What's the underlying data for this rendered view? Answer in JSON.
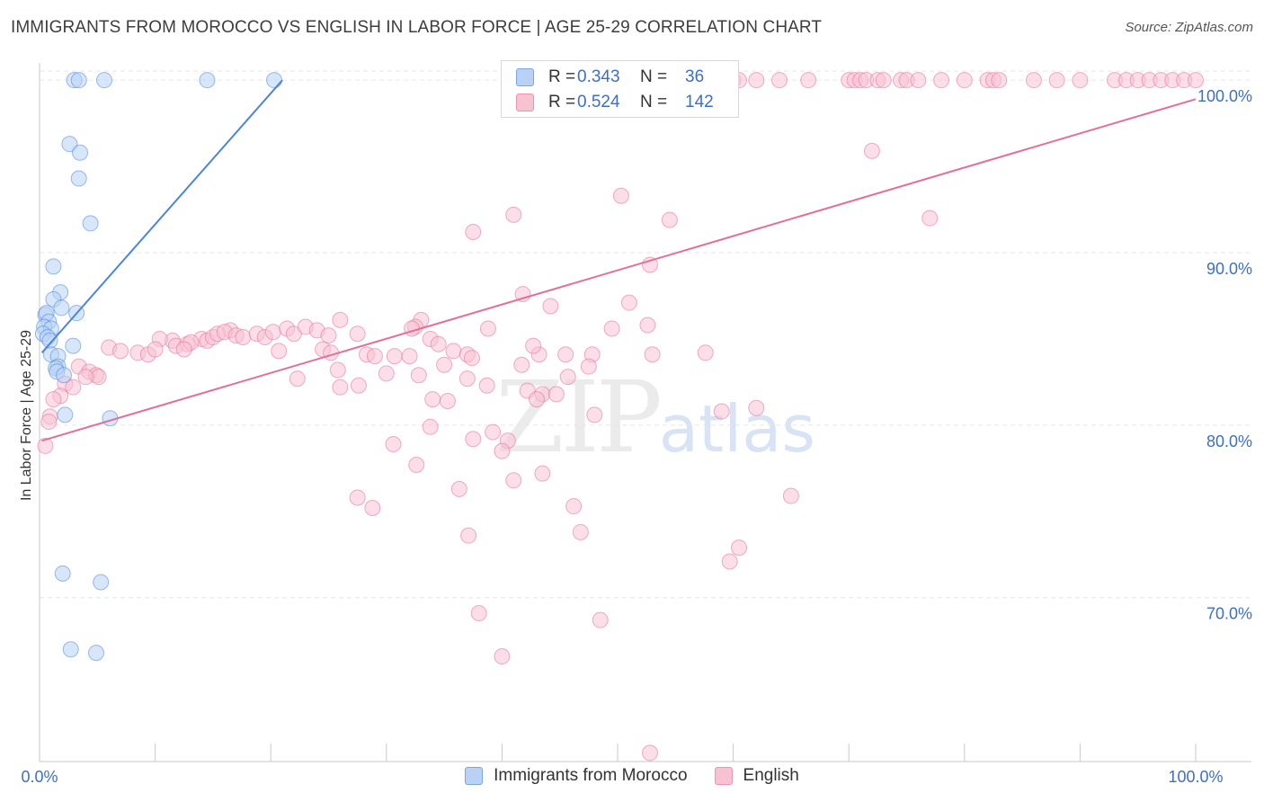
{
  "title": "IMMIGRANTS FROM MOROCCO VS ENGLISH IN LABOR FORCE | AGE 25-29 CORRELATION CHART",
  "source": "Source: ZipAtlas.com",
  "watermark": {
    "zip": "ZIP",
    "atlas": "atlas"
  },
  "legend": {
    "r_label": "R =",
    "n_label": "N =",
    "rows": [
      {
        "series": "Immigrants from Morocco",
        "r": "0.343",
        "n": "36",
        "fill": "#b8d1f5",
        "stroke": "#7aa6e6"
      },
      {
        "series": "English",
        "r": "0.524",
        "n": "142",
        "fill": "#f7c3d3",
        "stroke": "#ec94b1"
      }
    ]
  },
  "chart_data": {
    "type": "scatter",
    "title": "IMMIGRANTS FROM MOROCCO VS ENGLISH IN LABOR FORCE | AGE 25-29 CORRELATION CHART",
    "xlabel": "",
    "ylabel": "In Labor Force | Age 25-29",
    "xlim": [
      0,
      100
    ],
    "ylim": [
      60.5,
      101
    ],
    "x_tick_labels": [
      {
        "value": 0,
        "label": "0.0%"
      },
      {
        "value": 100,
        "label": "100.0%"
      }
    ],
    "y_tick_labels": [
      {
        "value": 70,
        "label": "70.0%"
      },
      {
        "value": 80,
        "label": "80.0%"
      },
      {
        "value": 90,
        "label": "90.0%"
      },
      {
        "value": 100,
        "label": "100.0%"
      }
    ],
    "series": [
      {
        "name": "Immigrants from Morocco",
        "color": "#4a86d8",
        "fill": "#b8d1f5",
        "trend": {
          "x0": 0.2,
          "y0": 84.2,
          "x1": 21,
          "y1": 100
        },
        "points": [
          [
            3,
            100
          ],
          [
            3.4,
            100
          ],
          [
            5.6,
            100
          ],
          [
            14.5,
            100
          ],
          [
            20.3,
            100
          ],
          [
            2.6,
            96.3
          ],
          [
            3.5,
            95.8
          ],
          [
            3.4,
            94.3
          ],
          [
            4.4,
            91.7
          ],
          [
            1.2,
            89.2
          ],
          [
            1.8,
            87.7
          ],
          [
            1.2,
            87.3
          ],
          [
            1.9,
            86.8
          ],
          [
            3.2,
            86.5
          ],
          [
            0.5,
            86.4
          ],
          [
            0.6,
            86.5
          ],
          [
            0.8,
            86
          ],
          [
            0.4,
            85.7
          ],
          [
            1.0,
            85.6
          ],
          [
            0.3,
            85.3
          ],
          [
            0.7,
            85.1
          ],
          [
            0.9,
            84.9
          ],
          [
            2.9,
            84.6
          ],
          [
            1.0,
            84.1
          ],
          [
            1.6,
            84
          ],
          [
            1.6,
            83.4
          ],
          [
            1.4,
            83.3
          ],
          [
            1.5,
            83.1
          ],
          [
            2.1,
            82.9
          ],
          [
            2.2,
            80.6
          ],
          [
            6.1,
            80.4
          ],
          [
            2.0,
            71.4
          ],
          [
            5.3,
            70.9
          ],
          [
            2.7,
            67
          ],
          [
            4.9,
            66.8
          ]
        ]
      },
      {
        "name": "English",
        "color": "#e36f98",
        "fill": "#f7c3d3",
        "trend": {
          "x0": 0.2,
          "y0": 79.1,
          "x1": 100,
          "y1": 98.9
        },
        "points": [
          [
            48,
            100
          ],
          [
            50,
            100
          ],
          [
            53,
            100
          ],
          [
            55,
            100
          ],
          [
            57.5,
            100
          ],
          [
            60,
            100
          ],
          [
            60.5,
            100
          ],
          [
            62,
            100
          ],
          [
            64,
            100
          ],
          [
            66.5,
            100
          ],
          [
            70,
            100
          ],
          [
            70.5,
            100
          ],
          [
            71,
            100
          ],
          [
            71.5,
            100
          ],
          [
            72.5,
            100
          ],
          [
            73,
            100
          ],
          [
            74.5,
            100
          ],
          [
            75,
            100
          ],
          [
            76,
            100
          ],
          [
            78,
            100
          ],
          [
            80,
            100
          ],
          [
            82,
            100
          ],
          [
            82.5,
            100
          ],
          [
            83,
            100
          ],
          [
            86,
            100
          ],
          [
            88,
            100
          ],
          [
            90,
            100
          ],
          [
            93,
            100
          ],
          [
            94,
            100
          ],
          [
            95,
            100
          ],
          [
            96,
            100
          ],
          [
            97,
            100
          ],
          [
            98,
            100
          ],
          [
            99,
            100
          ],
          [
            100,
            100
          ],
          [
            72,
            95.9
          ],
          [
            50.3,
            93.3
          ],
          [
            41,
            92.2
          ],
          [
            54.5,
            91.9
          ],
          [
            77,
            92
          ],
          [
            37.5,
            91.2
          ],
          [
            52.8,
            89.3
          ],
          [
            41.8,
            87.6
          ],
          [
            44.2,
            86.9
          ],
          [
            51,
            87.1
          ],
          [
            33,
            86.1
          ],
          [
            26,
            86.1
          ],
          [
            32.5,
            85.7
          ],
          [
            16.5,
            85.5
          ],
          [
            11.5,
            84.9
          ],
          [
            14,
            85
          ],
          [
            14.5,
            84.9
          ],
          [
            10.4,
            85
          ],
          [
            11.8,
            84.6
          ],
          [
            12.8,
            84.7
          ],
          [
            13.1,
            84.8
          ],
          [
            15.0,
            85.1
          ],
          [
            15.4,
            85.3
          ],
          [
            16.0,
            85.4
          ],
          [
            17.0,
            85.2
          ],
          [
            17.6,
            85.1
          ],
          [
            18.8,
            85.3
          ],
          [
            19.5,
            85.1
          ],
          [
            20.2,
            85.4
          ],
          [
            21.4,
            85.6
          ],
          [
            22.0,
            85.3
          ],
          [
            23.0,
            85.7
          ],
          [
            24.0,
            85.5
          ],
          [
            25.0,
            85.2
          ],
          [
            27.5,
            85.3
          ],
          [
            32.2,
            85.6
          ],
          [
            33.8,
            85.0
          ],
          [
            34.5,
            84.7
          ],
          [
            38.8,
            85.6
          ],
          [
            49.5,
            85.6
          ],
          [
            6,
            84.5
          ],
          [
            7,
            84.3
          ],
          [
            8.5,
            84.2
          ],
          [
            9.4,
            84.1
          ],
          [
            10,
            84.4
          ],
          [
            12.5,
            84.4
          ],
          [
            20.7,
            84.3
          ],
          [
            24.5,
            84.4
          ],
          [
            25.2,
            84.2
          ],
          [
            28.3,
            84.1
          ],
          [
            29.0,
            84.0
          ],
          [
            30.7,
            84.0
          ],
          [
            32.0,
            84.0
          ],
          [
            35.8,
            84.3
          ],
          [
            37.0,
            84.1
          ],
          [
            37.4,
            83.9
          ],
          [
            43.2,
            84.1
          ],
          [
            47.8,
            84.1
          ],
          [
            53.0,
            84.1
          ],
          [
            3.4,
            83.4
          ],
          [
            4.3,
            83.1
          ],
          [
            4.9,
            82.9
          ],
          [
            5.1,
            82.8
          ],
          [
            4.0,
            82.8
          ],
          [
            25.8,
            83.2
          ],
          [
            30.0,
            83.0
          ],
          [
            32.8,
            82.9
          ],
          [
            37.0,
            82.7
          ],
          [
            41.7,
            83.5
          ],
          [
            45.7,
            82.8
          ],
          [
            35.0,
            83.5
          ],
          [
            47.5,
            83.4
          ],
          [
            2.2,
            82.4
          ],
          [
            2.9,
            82.2
          ],
          [
            22.3,
            82.7
          ],
          [
            27.6,
            82.3
          ],
          [
            26.0,
            82.2
          ],
          [
            38.7,
            82.3
          ],
          [
            42.2,
            82.0
          ],
          [
            43.5,
            81.8
          ],
          [
            44.7,
            81.8
          ],
          [
            43.0,
            81.5
          ],
          [
            1.8,
            81.7
          ],
          [
            1.2,
            81.5
          ],
          [
            34.0,
            81.5
          ],
          [
            35.3,
            81.4
          ],
          [
            0.9,
            80.5
          ],
          [
            0.8,
            80.2
          ],
          [
            48.0,
            80.6
          ],
          [
            33.8,
            79.9
          ],
          [
            37.5,
            79.2
          ],
          [
            39.2,
            79.6
          ],
          [
            40.5,
            79.1
          ],
          [
            40.0,
            78.5
          ],
          [
            59.0,
            80.8
          ],
          [
            62.0,
            81.0
          ],
          [
            0.5,
            78.8
          ],
          [
            30.6,
            78.9
          ],
          [
            32.6,
            77.7
          ],
          [
            36.3,
            76.3
          ],
          [
            41.0,
            76.8
          ],
          [
            46.2,
            75.3
          ],
          [
            43.5,
            77.2
          ],
          [
            27.5,
            75.8
          ],
          [
            28.8,
            75.2
          ],
          [
            37.1,
            73.6
          ],
          [
            46.8,
            73.8
          ],
          [
            60.5,
            72.9
          ],
          [
            59.7,
            72.1
          ],
          [
            65.0,
            75.9
          ],
          [
            38.0,
            69.1
          ],
          [
            40.0,
            66.6
          ],
          [
            48.5,
            68.7
          ],
          [
            52.8,
            61.0
          ],
          [
            42.7,
            84.6
          ],
          [
            45.5,
            84.1
          ],
          [
            57.6,
            84.2
          ],
          [
            52.6,
            85.8
          ]
        ]
      }
    ]
  }
}
